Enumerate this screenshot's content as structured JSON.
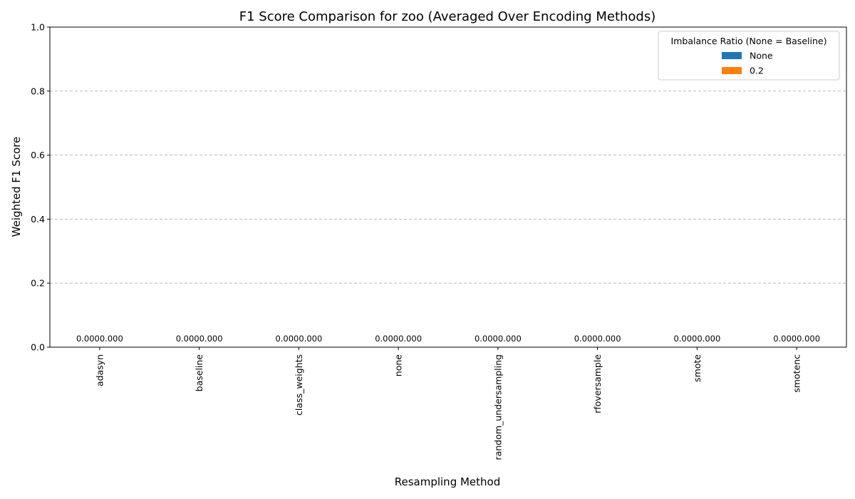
{
  "chart_data": {
    "type": "bar",
    "title": "F1 Score Comparison for zoo (Averaged Over Encoding Methods)",
    "xlabel": "Resampling Method",
    "ylabel": "Weighted F1 Score",
    "ylim": [
      0,
      1.0
    ],
    "yticks": [
      "0.0",
      "0.2",
      "0.4",
      "0.6",
      "0.8",
      "1.0"
    ],
    "grid": "y-dashed",
    "categories": [
      "adasyn",
      "baseline",
      "class_weights",
      "none",
      "random_undersampling",
      "rfoversample",
      "smote",
      "smotenc"
    ],
    "series": [
      {
        "name": "None",
        "color": "#1f77b4",
        "values": [
          0,
          0,
          0,
          0,
          0,
          0,
          0,
          0
        ]
      },
      {
        "name": "0.2",
        "color": "#ff7f0e",
        "values": [
          0,
          0,
          0,
          0,
          0,
          0,
          0,
          0
        ]
      }
    ],
    "data_labels": [
      "0.0000.000",
      "0.0000.000",
      "0.0000.000",
      "0.0000.000",
      "0.0000.000",
      "0.0000.000",
      "0.0000.000",
      "0.0000.000"
    ],
    "legend": {
      "title": "Imbalance Ratio (None = Baseline)",
      "placement": "top-right"
    }
  }
}
